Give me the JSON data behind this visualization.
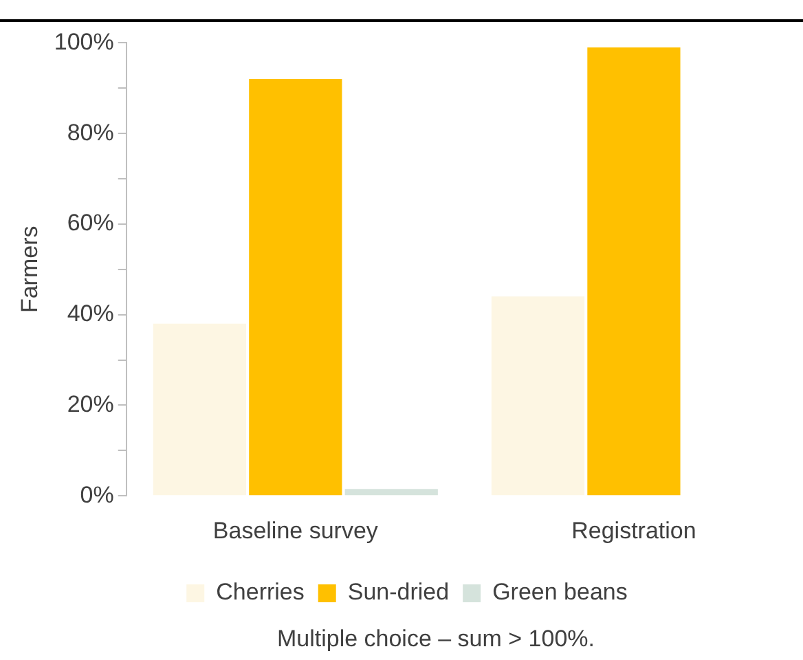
{
  "chart_data": {
    "type": "bar",
    "ylabel": "Farmers",
    "categories": [
      "Baseline survey",
      "Registration"
    ],
    "series": [
      {
        "name": "Cherries",
        "color": "#fdf6e3",
        "values": [
          38,
          44
        ]
      },
      {
        "name": "Sun-dried",
        "color": "#ffc000",
        "values": [
          92,
          99
        ]
      },
      {
        "name": "Green beans",
        "color": "#d5e3dc",
        "values": [
          1.5,
          0
        ]
      }
    ],
    "ylim": [
      0,
      100
    ],
    "yticks": [
      {
        "value": 0,
        "label": "0%"
      },
      {
        "value": 10,
        "label": null
      },
      {
        "value": 20,
        "label": "20%"
      },
      {
        "value": 30,
        "label": null
      },
      {
        "value": 40,
        "label": "40%"
      },
      {
        "value": 50,
        "label": null
      },
      {
        "value": 60,
        "label": "60%"
      },
      {
        "value": 70,
        "label": null
      },
      {
        "value": 80,
        "label": "80%"
      },
      {
        "value": 90,
        "label": null
      },
      {
        "value": 100,
        "label": "100%"
      }
    ],
    "grid": false,
    "legend": "bottom",
    "annotations": [
      "Multiple choice – sum > 100%."
    ]
  }
}
